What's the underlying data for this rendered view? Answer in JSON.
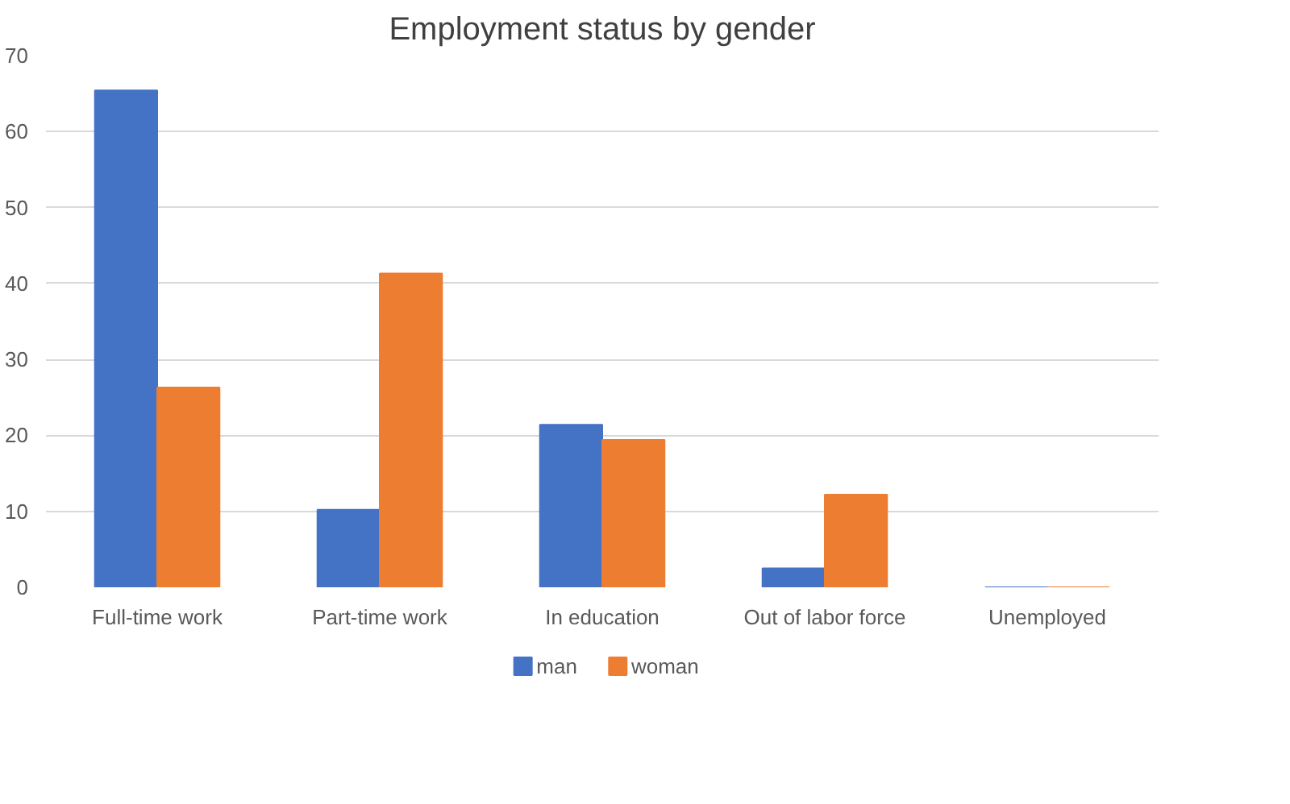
{
  "chart_data": {
    "type": "bar",
    "title": "Employment status by gender",
    "categories": [
      "Full-time work",
      "Part-time work",
      "In education",
      "Out of labor force",
      "Unemployed"
    ],
    "series": [
      {
        "name": "man",
        "color": "#4472c4",
        "values": [
          65.4,
          10.2,
          21.4,
          2.5,
          0
        ]
      },
      {
        "name": "woman",
        "color": "#ed7d31",
        "values": [
          26.3,
          41.3,
          19.4,
          12.2,
          0
        ]
      }
    ],
    "ylim": [
      0,
      70
    ],
    "yticks": [
      0,
      10,
      20,
      30,
      40,
      50,
      60,
      70
    ],
    "grid": "y",
    "legend": "bottom"
  }
}
